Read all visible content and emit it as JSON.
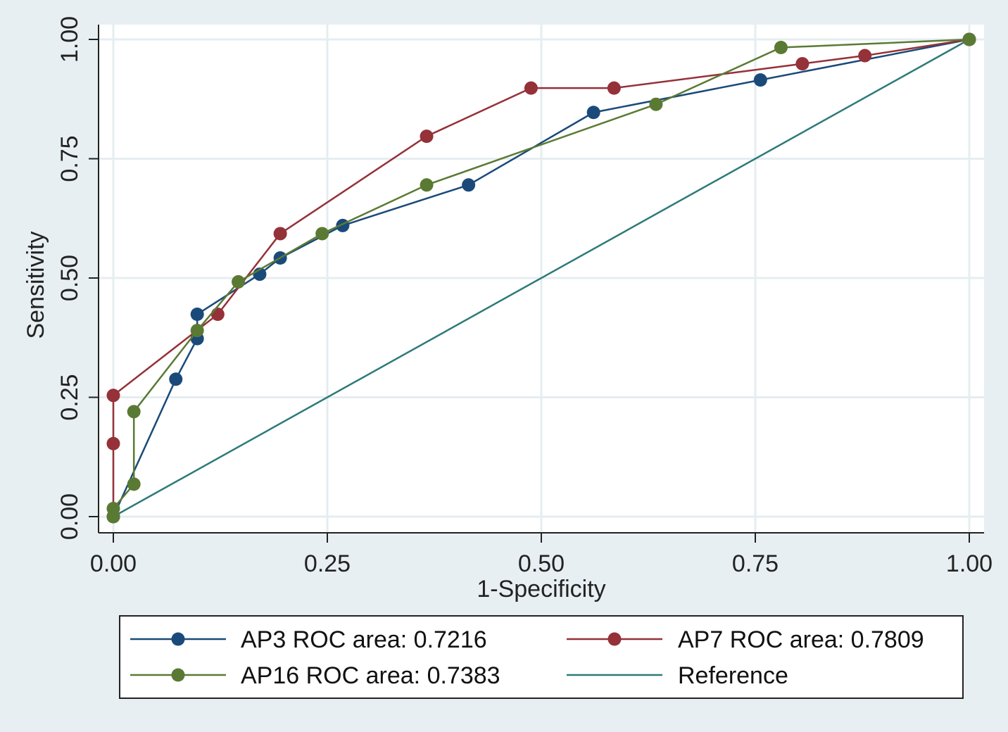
{
  "chart_data": {
    "type": "line",
    "title": "",
    "xlabel": "1-Specificity",
    "ylabel": "Sensitivity",
    "xlim": [
      0,
      1
    ],
    "ylim": [
      0,
      1
    ],
    "grid": true,
    "legend_position": "bottom",
    "x_ticks": [
      "0.00",
      "0.25",
      "0.50",
      "0.75",
      "1.00"
    ],
    "y_ticks": [
      "0.00",
      "0.25",
      "0.50",
      "0.75",
      "1.00"
    ],
    "series": [
      {
        "name": "AP3 ROC area: 0.7216",
        "color": "#1a4a7a",
        "markers": true,
        "x": [
          0,
          0.073,
          0.098,
          0.098,
          0.171,
          0.195,
          0.268,
          0.415,
          0.561,
          0.756,
          1.0
        ],
        "y": [
          0,
          0.288,
          0.373,
          0.424,
          0.508,
          0.542,
          0.61,
          0.695,
          0.847,
          0.915,
          1.0
        ]
      },
      {
        "name": "AP7 ROC area: 0.7809",
        "color": "#953138",
        "markers": true,
        "x": [
          0,
          0,
          0,
          0.122,
          0.195,
          0.366,
          0.488,
          0.585,
          0.805,
          0.878,
          1.0
        ],
        "y": [
          0,
          0.153,
          0.254,
          0.424,
          0.593,
          0.797,
          0.898,
          0.898,
          0.949,
          0.966,
          1.0
        ]
      },
      {
        "name": "AP16 ROC area: 0.7383",
        "color": "#5a7a34",
        "markers": true,
        "x": [
          0,
          0,
          0.024,
          0.024,
          0.098,
          0.146,
          0.244,
          0.366,
          0.634,
          0.78,
          1.0
        ],
        "y": [
          0,
          0.017,
          0.068,
          0.22,
          0.39,
          0.492,
          0.593,
          0.695,
          0.864,
          0.983,
          1.0
        ]
      },
      {
        "name": "Reference",
        "color": "#2e7a7a",
        "markers": false,
        "x": [
          0,
          1
        ],
        "y": [
          0,
          1
        ]
      }
    ]
  }
}
